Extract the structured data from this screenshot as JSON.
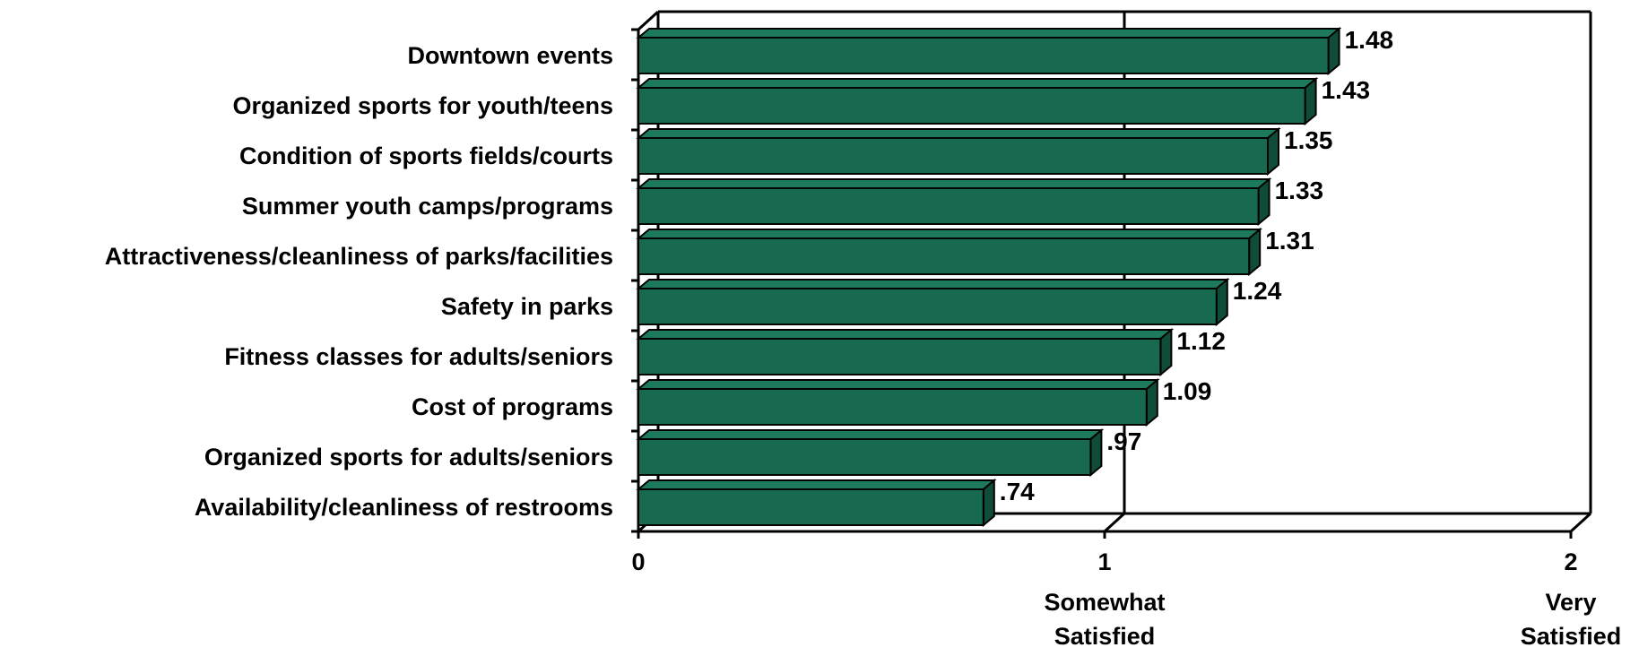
{
  "chart_data": {
    "type": "bar",
    "orientation": "horizontal",
    "categories": [
      "Downtown events",
      "Organized sports for youth/teens",
      "Condition of sports fields/courts",
      "Summer youth camps/programs",
      "Attractiveness/cleanliness of parks/facilities",
      "Safety in parks",
      "Fitness classes for adults/seniors",
      "Cost of programs",
      "Organized sports for adults/seniors",
      "Availability/cleanliness of restrooms"
    ],
    "values": [
      1.48,
      1.43,
      1.35,
      1.33,
      1.31,
      1.24,
      1.12,
      1.09,
      0.97,
      0.74
    ],
    "value_labels": [
      "1.48",
      "1.43",
      "1.35",
      "1.33",
      "1.31",
      "1.24",
      "1.12",
      "1.09",
      ".97",
      ".74"
    ],
    "xlim": [
      0,
      2
    ],
    "x_ticks": [
      {
        "value": 0,
        "label": "0",
        "sublabel": []
      },
      {
        "value": 1,
        "label": "1",
        "sublabel": [
          "Somewhat",
          "Satisfied"
        ]
      },
      {
        "value": 2,
        "label": "2",
        "sublabel": [
          "Very",
          "Satisfied"
        ]
      }
    ],
    "title": "",
    "xlabel": "",
    "ylabel": "",
    "grid": "vertical line at 1",
    "style": "3d",
    "bar_color": "#17694f",
    "bar_top_color": "#1e7a5c",
    "bar_side_color": "#0f4c39"
  }
}
